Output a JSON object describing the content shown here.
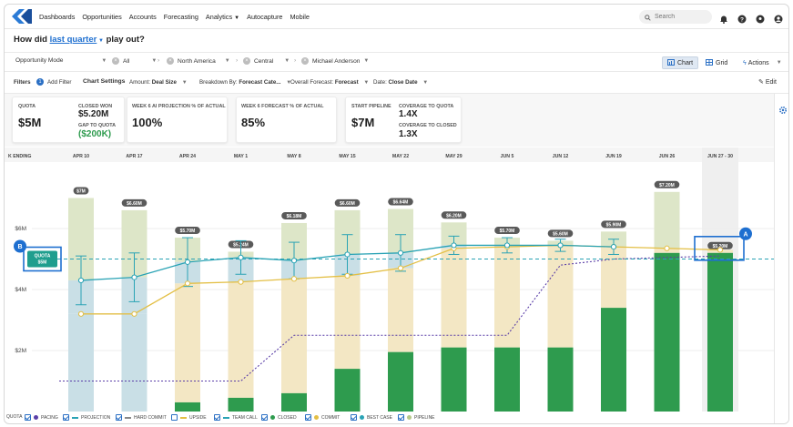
{
  "nav": {
    "links": [
      "Dashboards",
      "Opportunities",
      "Accounts",
      "Forecasting",
      "Analytics",
      "Autocapture",
      "Mobile"
    ],
    "search_placeholder": "Search"
  },
  "title": {
    "prefix": "How did ",
    "period": "last quarter",
    "suffix": " play out?"
  },
  "bar1": {
    "mode": "Opportunity Mode",
    "filters": [
      "All",
      "North America",
      "Central",
      "Michael Anderson"
    ],
    "chart_label": "Chart",
    "grid_label": "Grid",
    "actions_label": "Actions"
  },
  "bar2": {
    "filters_label": "Filters",
    "filters_count": "1",
    "add_filter": "Add Filter",
    "chart_settings": "Chart Settings",
    "amount_label": "Amount:",
    "amount_value": "Deal Size",
    "breakdown_label": "Breakdown By:",
    "breakdown_value": "Forecast Cate...",
    "overall_label": "Overall Forecast:",
    "overall_value": "Forecast",
    "date_label": "Date:",
    "date_value": "Close Date",
    "edit_label": "Edit"
  },
  "cards": {
    "quota_label": "Quota",
    "quota_value": "$5M",
    "closed_won_label": "Closed Won",
    "closed_won_value": "$5.20M",
    "gap_label": "Gap to Quota",
    "gap_value": "($200K)",
    "ai_label": "Week 6 AI Projection % of Actual",
    "ai_value": "100%",
    "fc_label": "Week 6 Forecast % of Actual",
    "fc_value": "85%",
    "pipe_label": "Start Pipeline",
    "pipe_value": "$7M",
    "cov_label": "Coverage to Quota",
    "cov_value": "1.4X",
    "cov_closed_label": "Coverage to Closed",
    "cov_closed_value": "1.3X"
  },
  "annotations": {
    "a": "A",
    "b": "B",
    "quota_tag_line1": "QUOTA",
    "quota_tag_line2": "$5M"
  },
  "colors": {
    "closed": "#2e9b4e",
    "commit": "#e3bf45",
    "best_case": "#2aa3b5",
    "pipeline_band": "#dde6c8",
    "upside": "#f3e7c4",
    "best_case_band": "#c9dfe6",
    "pacing": "#5b3fa8",
    "accent": "#1e6fd0",
    "annotation_box": "#1e6fd0"
  },
  "chart_data": {
    "type": "bar",
    "x_header": "WEEK ENDING",
    "x_header_visible": "K ENDING",
    "categories": [
      "APR 10",
      "APR 17",
      "APR 24",
      "MAY 1",
      "MAY 8",
      "MAY 15",
      "MAY 22",
      "MAY 29",
      "JUN 5",
      "JUN 12",
      "JUN 19",
      "JUN 26",
      "JUN 27 - 30"
    ],
    "y_ticks": [
      "$6M",
      "$4M",
      "$2M"
    ],
    "ylim": [
      0,
      8
    ],
    "closed": [
      0,
      0,
      0.3,
      0.45,
      0.6,
      1.4,
      1.95,
      2.1,
      2.1,
      2.1,
      3.4,
      5.2,
      5.2
    ],
    "commit": [
      3.2,
      3.2,
      4.2,
      4.25,
      4.35,
      4.45,
      4.7,
      5.35,
      5.4,
      5.45,
      5.4,
      5.35,
      5.3
    ],
    "best_case": [
      4.3,
      4.4,
      4.9,
      5.05,
      4.95,
      5.15,
      5.2,
      5.45,
      5.45,
      5.45,
      5.4,
      5.3,
      5.2
    ],
    "best_case_err": [
      0.8,
      0.8,
      0.8,
      0.55,
      0.6,
      0.65,
      0.6,
      0.3,
      0.25,
      0.2,
      0.25,
      0,
      0
    ],
    "pipeline_totals": [
      7,
      6.6,
      5.7,
      5.24,
      6.18,
      6.6,
      6.64,
      6.2,
      5.7,
      5.6,
      5.9,
      7.2,
      5.2
    ],
    "total_labels": [
      "$7M",
      "$6.60M",
      "$5.70M",
      "$5.24M",
      "$6.18M",
      "$6.60M",
      "$6.64M",
      "$6.20M",
      "$5.70M",
      "$5.60M",
      "$5.90M",
      "$7.20M",
      "$5.20M"
    ],
    "pacing": [
      1,
      1,
      1,
      1,
      2.5,
      2.5,
      2.5,
      2.5,
      2.5,
      4.8,
      5.0,
      5.05,
      5.1
    ],
    "quota": 5,
    "legend": [
      "QUOTA",
      "PACING",
      "PROJECTION",
      "HARD COMMIT",
      "UPSIDE",
      "TEAM CALL",
      "CLOSED",
      "COMMIT",
      "BEST CASE",
      "PIPELINE"
    ]
  }
}
